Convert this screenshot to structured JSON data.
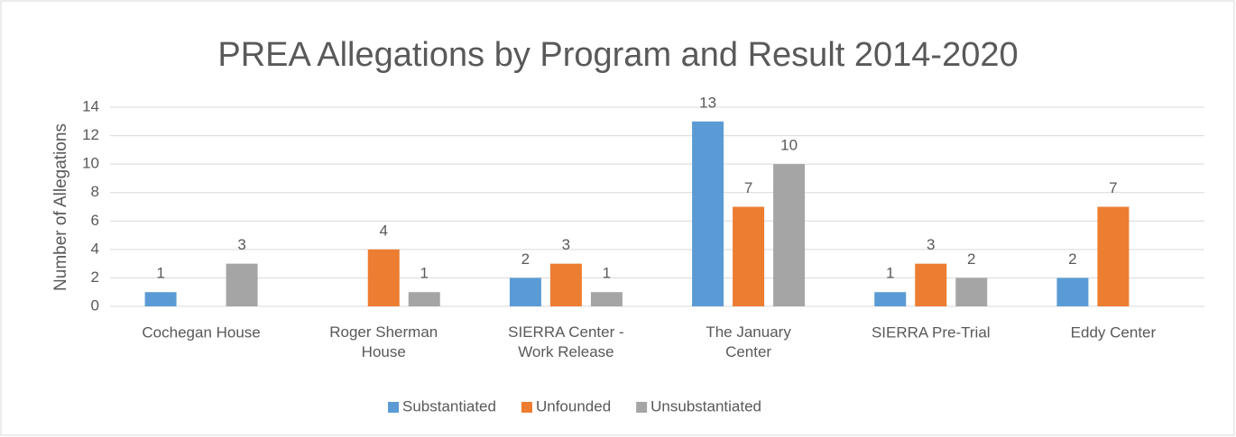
{
  "chart_data": {
    "type": "bar",
    "title": "PREA Allegations by Program and Result 2014-2020",
    "y_label": "Number of Allegations",
    "categories": [
      "Cochegan House",
      "Roger Sherman House",
      "SIERRA Center - Work Release",
      "The January Center",
      "SIERRA Pre-Trial",
      "Eddy Center"
    ],
    "series": [
      {
        "name": "Substantiated",
        "color": "#5b9bd5",
        "values": [
          1,
          null,
          2,
          13,
          1,
          2
        ]
      },
      {
        "name": "Unfounded",
        "color": "#ed7d31",
        "values": [
          null,
          4,
          3,
          7,
          3,
          7
        ]
      },
      {
        "name": "Unsubstantiated",
        "color": "#a5a5a5",
        "values": [
          3,
          1,
          1,
          10,
          2,
          null
        ]
      }
    ],
    "ylim": [
      0,
      14
    ],
    "yticks": [
      0,
      2,
      4,
      6,
      8,
      10,
      12,
      14
    ],
    "grid": true,
    "legend": "bottom"
  }
}
